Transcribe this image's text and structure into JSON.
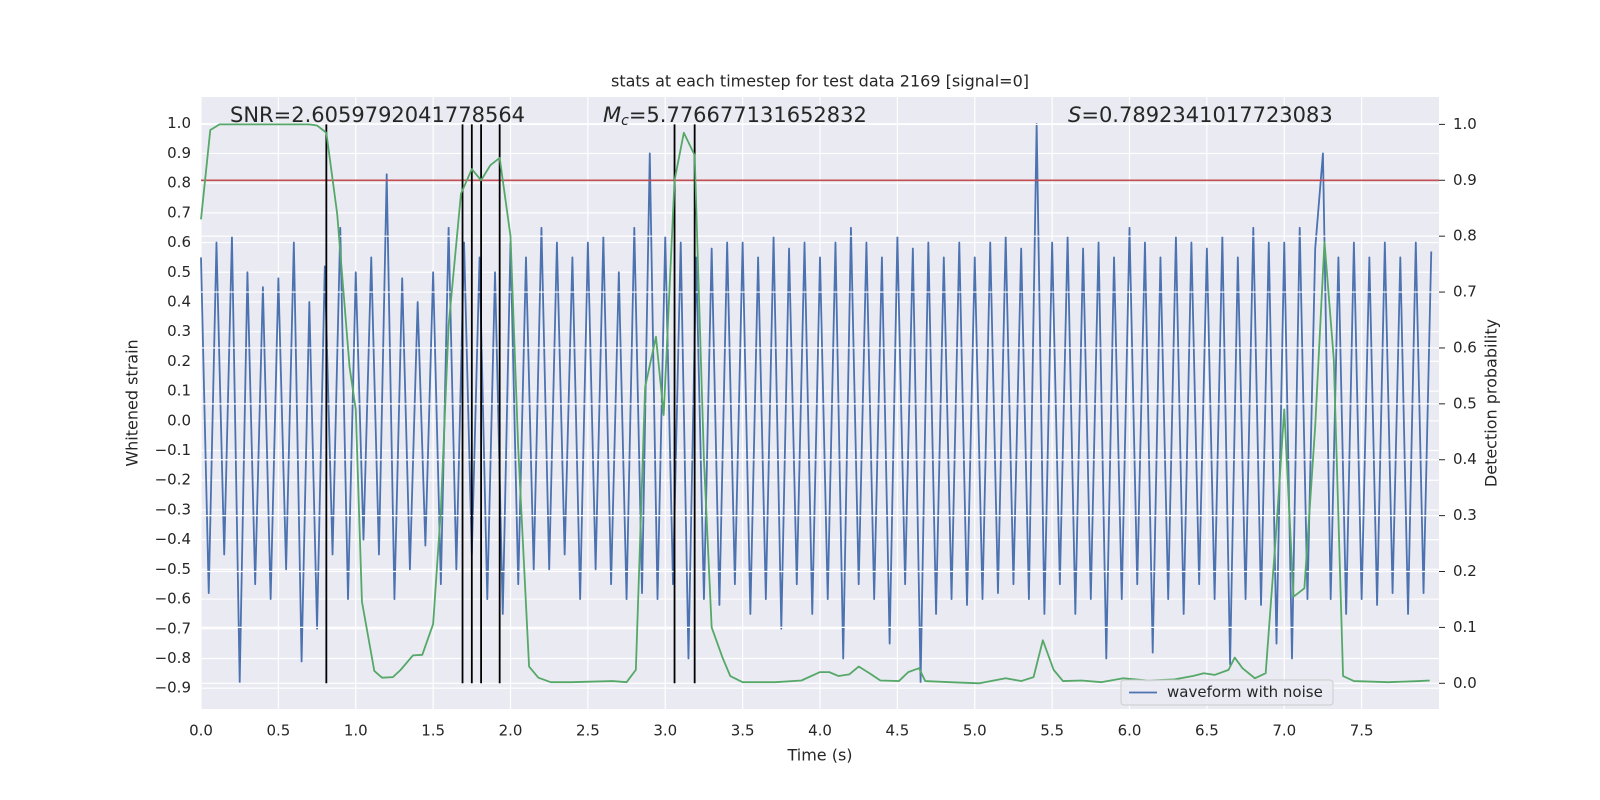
{
  "chart_data": {
    "type": "line",
    "title": "stats at each timestep for test data 2169 [signal=0]",
    "xlabel": "Time (s)",
    "ylabel": "Whitened strain",
    "y2label": "Detection probability",
    "annotations": [
      {
        "text": "SNR=2.6059792041778564"
      },
      {
        "symbol": "M",
        "sub": "c",
        "text": "=5.776677131652832"
      },
      {
        "symbol": "S",
        "text": "=0.7892341017723083"
      }
    ],
    "xlim": [
      0,
      8.0
    ],
    "ylim": [
      -0.97,
      1.09
    ],
    "y2lim": [
      -0.046,
      1.049
    ],
    "xticks": [
      {
        "value": 0,
        "label": "0.0"
      },
      0.5,
      {
        "value": 1,
        "label": "1.0"
      },
      1.5,
      {
        "value": 2,
        "label": "2.0"
      },
      2.5,
      {
        "value": 3,
        "label": "3.0"
      },
      3.5,
      {
        "value": 4,
        "label": "4.0"
      },
      4.5,
      {
        "value": 5,
        "label": "5.0"
      },
      5.5,
      {
        "value": 6,
        "label": "6.0"
      },
      6.5,
      {
        "value": 7,
        "label": "7.0"
      },
      7.5
    ],
    "yticks": [
      {
        "value": 1,
        "label": "1.0"
      },
      0.9,
      0.8,
      0.7,
      0.6,
      0.5,
      0.4,
      0.3,
      0.2,
      0.1,
      {
        "value": 0,
        "label": "0.0"
      },
      {
        "value": -0.1,
        "label": "−0.1"
      },
      {
        "value": -0.2,
        "label": "−0.2"
      },
      {
        "value": -0.3,
        "label": "−0.3"
      },
      {
        "value": -0.4,
        "label": "−0.4"
      },
      {
        "value": -0.5,
        "label": "−0.5"
      },
      {
        "value": -0.6,
        "label": "−0.6"
      },
      {
        "value": -0.7,
        "label": "−0.7"
      },
      {
        "value": -0.8,
        "label": "−0.8"
      },
      {
        "value": -0.9,
        "label": "−0.9"
      }
    ],
    "y2ticks": [
      {
        "value": 0,
        "label": "0.0"
      },
      0.1,
      0.2,
      0.3,
      0.4,
      0.5,
      0.6,
      0.7,
      0.8,
      0.9,
      {
        "value": 1,
        "label": "1.0"
      }
    ],
    "grid": true,
    "legend": "lower right",
    "series": [
      {
        "name": "waveform with noise",
        "color": "#4c72b0",
        "legend": true,
        "x": [
          0,
          0.05,
          0.1,
          0.15,
          0.2,
          0.25,
          0.3,
          0.35,
          0.4,
          0.45,
          0.5,
          0.55,
          0.6,
          0.65,
          0.7,
          0.75,
          0.8,
          0.85,
          0.9,
          0.95,
          1,
          1.05,
          1.1,
          1.15,
          1.2,
          1.25,
          1.3,
          1.35,
          1.4,
          1.45,
          1.5,
          1.55,
          1.6,
          1.65,
          1.7,
          1.75,
          1.8,
          1.85,
          1.9,
          1.95,
          2,
          2.05,
          2.1,
          2.15,
          2.2,
          2.25,
          2.3,
          2.35,
          2.4,
          2.45,
          2.5,
          2.55,
          2.6,
          2.65,
          2.7,
          2.75,
          2.8,
          2.85,
          2.9,
          2.95,
          3,
          3.05,
          3.1,
          3.15,
          3.2,
          3.25,
          3.3,
          3.35,
          3.4,
          3.45,
          3.5,
          3.55,
          3.6,
          3.65,
          3.7,
          3.75,
          3.8,
          3.85,
          3.9,
          3.95,
          4,
          4.05,
          4.1,
          4.15,
          4.2,
          4.25,
          4.3,
          4.35,
          4.4,
          4.45,
          4.5,
          4.55,
          4.6,
          4.65,
          4.7,
          4.75,
          4.8,
          4.85,
          4.9,
          4.95,
          5,
          5.05,
          5.1,
          5.15,
          5.2,
          5.25,
          5.3,
          5.35,
          5.4,
          5.45,
          5.5,
          5.55,
          5.6,
          5.65,
          5.7,
          5.75,
          5.8,
          5.85,
          5.9,
          5.95,
          6,
          6.05,
          6.1,
          6.15,
          6.2,
          6.25,
          6.3,
          6.35,
          6.4,
          6.45,
          6.5,
          6.55,
          6.6,
          6.65,
          6.7,
          6.75,
          6.8,
          6.85,
          6.9,
          6.95,
          7,
          7.05,
          7.1,
          7.15,
          7.2,
          7.25,
          7.3,
          7.35,
          7.4,
          7.45,
          7.5,
          7.55,
          7.6,
          7.65,
          7.7,
          7.75,
          7.8,
          7.85,
          7.9,
          7.95
        ],
        "values": [
          0.55,
          -0.58,
          0.6,
          -0.45,
          0.62,
          -0.88,
          0.5,
          -0.55,
          0.45,
          -0.6,
          0.48,
          -0.5,
          0.6,
          -0.81,
          0.4,
          -0.7,
          0.52,
          -0.45,
          0.65,
          -0.6,
          0.5,
          -0.4,
          0.55,
          -0.45,
          0.83,
          -0.6,
          0.48,
          -0.5,
          0.4,
          -0.42,
          0.5,
          -0.55,
          0.65,
          -0.5,
          0.6,
          -0.45,
          0.55,
          -0.6,
          0.5,
          -0.65,
          0.6,
          -0.55,
          0.55,
          -0.5,
          0.65,
          -0.5,
          0.6,
          -0.45,
          0.55,
          -0.6,
          0.6,
          -0.5,
          0.62,
          -0.55,
          0.5,
          -0.6,
          0.65,
          -0.58,
          0.9,
          -0.6,
          0.62,
          -0.55,
          0.6,
          -0.8,
          0.55,
          -0.6,
          0.58,
          -0.62,
          0.6,
          -0.55,
          0.6,
          -0.65,
          0.55,
          -0.6,
          0.62,
          -0.7,
          0.58,
          -0.55,
          0.6,
          -0.65,
          0.55,
          -0.6,
          0.6,
          -0.8,
          0.65,
          -0.55,
          0.6,
          -0.6,
          0.55,
          -0.75,
          0.62,
          -0.55,
          0.58,
          -0.88,
          0.6,
          -0.65,
          0.55,
          -0.6,
          0.6,
          -0.62,
          0.55,
          -0.6,
          0.6,
          -0.58,
          0.62,
          -0.55,
          0.58,
          -0.6,
          1.0,
          -0.65,
          0.6,
          -0.55,
          0.62,
          -0.65,
          0.58,
          -0.6,
          0.6,
          -0.8,
          0.55,
          -0.6,
          0.65,
          -0.55,
          0.6,
          -0.78,
          0.55,
          -0.6,
          0.62,
          -0.65,
          0.6,
          -0.55,
          0.58,
          -0.6,
          0.62,
          -0.82,
          0.55,
          -0.6,
          0.65,
          -0.62,
          0.6,
          -0.75,
          0.6,
          -0.8,
          0.65,
          -0.6,
          0.58,
          0.9,
          -0.6,
          0.55,
          -0.65,
          0.6,
          -0.6,
          0.55,
          -0.62,
          0.6,
          -0.58,
          0.55,
          -0.65,
          0.6,
          -0.58,
          0.57
        ]
      },
      {
        "color": "#55a868",
        "axis": "y2",
        "x": [
          0,
          0.06,
          0.12,
          0.7,
          0.75,
          0.81,
          0.88,
          0.96,
          1.0,
          1.04,
          1.12,
          1.17,
          1.24,
          1.29,
          1.37,
          1.43,
          1.5,
          1.55,
          1.6,
          1.68,
          1.75,
          1.81,
          1.87,
          1.93,
          2.0,
          2.05,
          2.12,
          2.18,
          2.26,
          2.39,
          2.66,
          2.75,
          2.81,
          2.87,
          2.94,
          2.99,
          3.06,
          3.12,
          3.19,
          3.25,
          3.3,
          3.37,
          3.42,
          3.5,
          3.71,
          3.88,
          4.0,
          4.06,
          4.12,
          4.19,
          4.25,
          4.32,
          4.39,
          4.51,
          4.57,
          4.64,
          4.68,
          4.84,
          5.03,
          5.2,
          5.3,
          5.38,
          5.44,
          5.51,
          5.57,
          5.69,
          5.82,
          5.96,
          6.12,
          6.29,
          6.41,
          6.48,
          6.55,
          6.64,
          6.68,
          6.73,
          6.81,
          6.88,
          6.95,
          7.0,
          7.06,
          7.13,
          7.2,
          7.26,
          7.32,
          7.38,
          7.45,
          7.67,
          7.87,
          7.94
        ],
        "values": [
          0.83,
          0.99,
          1.0,
          1.0,
          0.998,
          0.985,
          0.84,
          0.566,
          0.49,
          0.146,
          0.022,
          0.01,
          0.011,
          0.024,
          0.05,
          0.051,
          0.106,
          0.31,
          0.64,
          0.876,
          0.92,
          0.9,
          0.927,
          0.94,
          0.8,
          0.42,
          0.03,
          0.01,
          0.002,
          0.002,
          0.004,
          0.002,
          0.024,
          0.53,
          0.62,
          0.48,
          0.9,
          0.985,
          0.945,
          0.4,
          0.1,
          0.046,
          0.013,
          0.002,
          0.002,
          0.005,
          0.02,
          0.02,
          0.013,
          0.016,
          0.03,
          0.018,
          0.005,
          0.004,
          0.02,
          0.027,
          0.004,
          0.002,
          0.0,
          0.009,
          0.004,
          0.011,
          0.077,
          0.024,
          0.004,
          0.005,
          0.002,
          0.009,
          0.005,
          0.007,
          0.013,
          0.018,
          0.015,
          0.024,
          0.046,
          0.027,
          0.009,
          0.018,
          0.28,
          0.49,
          0.155,
          0.17,
          0.46,
          0.79,
          0.58,
          0.013,
          0.004,
          0.002,
          0.004,
          0.005
        ]
      }
    ],
    "threshold": {
      "value": 0.9,
      "axis": "y2",
      "color": "#c44e52"
    },
    "vlines": {
      "x": [
        0.81,
        1.69,
        1.75,
        1.81,
        1.93,
        3.06,
        3.19
      ],
      "ymin": 0,
      "ymax": 1,
      "axis": "y2",
      "color": "#000000"
    }
  }
}
